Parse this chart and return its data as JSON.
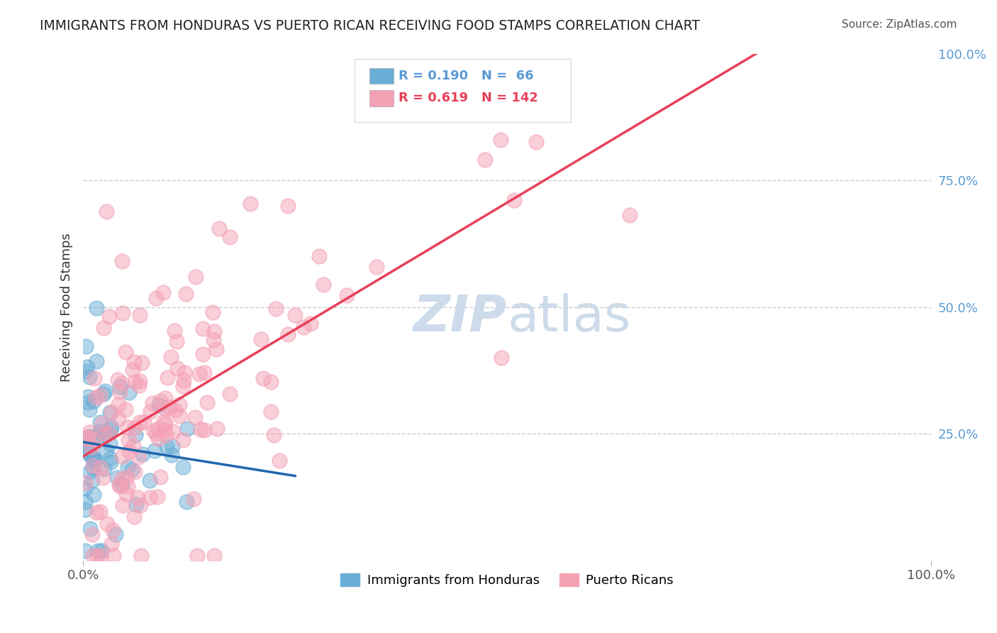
{
  "title": "IMMIGRANTS FROM HONDURAS VS PUERTO RICAN RECEIVING FOOD STAMPS CORRELATION CHART",
  "source": "Source: ZipAtlas.com",
  "ylabel": "Receiving Food Stamps",
  "ytick_values": [
    0.25,
    0.5,
    0.75,
    1.0
  ],
  "ytick_labels": [
    "25.0%",
    "50.0%",
    "75.0%",
    "100.0%"
  ],
  "xlim": [
    0,
    1.0
  ],
  "ylim": [
    0,
    1.0
  ],
  "blue_color": "#6aaed6",
  "pink_color": "#f4a0b5",
  "blue_line_color": "#2166ac",
  "pink_line_color": "#e8405a",
  "watermark_color": "#c8d8e8",
  "background_color": "#ffffff",
  "grid_color": "#cccccc",
  "n_blue": 66,
  "n_pink": 142,
  "r_blue": 0.19,
  "r_pink": 0.619
}
